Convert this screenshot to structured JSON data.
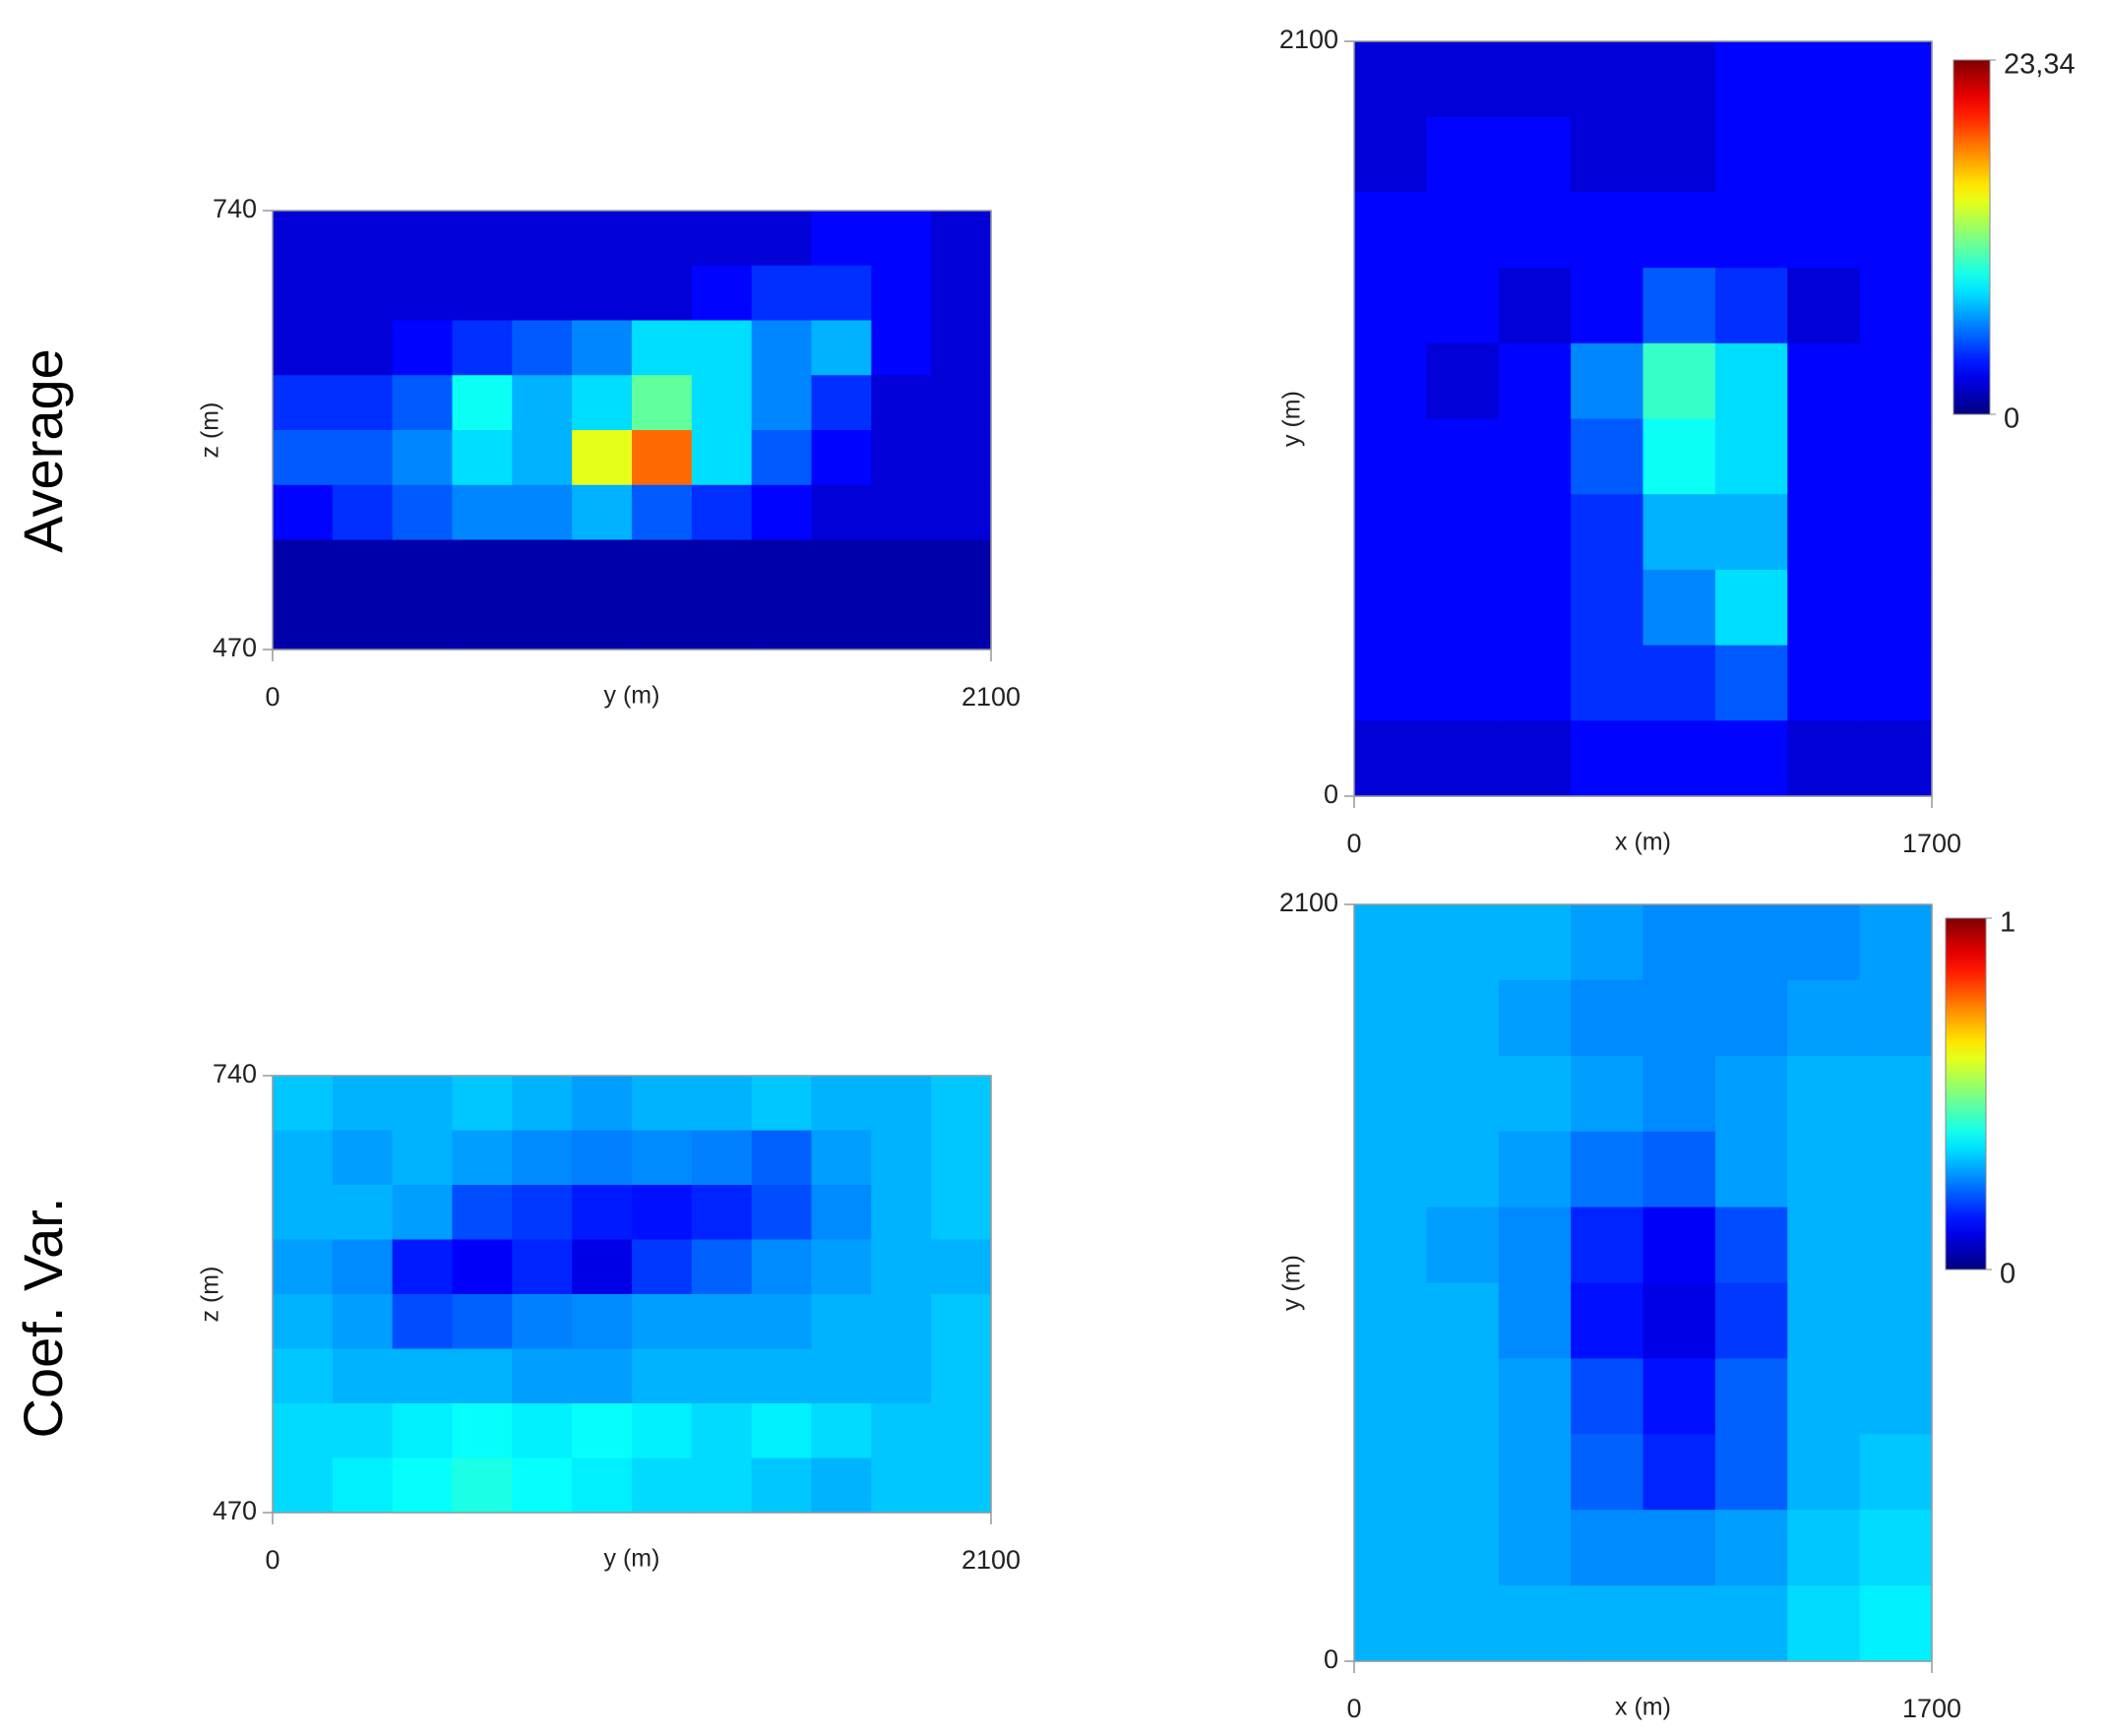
{
  "row_labels": [
    "Average",
    "Coef. Var."
  ],
  "chart_data": [
    {
      "type": "heatmap",
      "colormap": "jet",
      "xlabel": "y (m)",
      "ylabel": "z (m)",
      "xlim": [
        0,
        2100
      ],
      "ylim": [
        470,
        740
      ],
      "xticks": [
        0,
        2100
      ],
      "yticks": [
        470,
        740
      ],
      "zlim": [
        0,
        23.34
      ],
      "z": [
        [
          2,
          2,
          2,
          2,
          2,
          2,
          2,
          2,
          2,
          3,
          3,
          2
        ],
        [
          2,
          2,
          2,
          2,
          2,
          2,
          2,
          3,
          4,
          4,
          3,
          2
        ],
        [
          2,
          2,
          3,
          4,
          5,
          6,
          8,
          8,
          6,
          7,
          3,
          2
        ],
        [
          4,
          4,
          5,
          9,
          7,
          8,
          11,
          8,
          6,
          4,
          2,
          2
        ],
        [
          5,
          5,
          6,
          8,
          7,
          14,
          18,
          8,
          5,
          3,
          2,
          2
        ],
        [
          3,
          4,
          5,
          6,
          6,
          7,
          5,
          4,
          3,
          2,
          2,
          2
        ],
        [
          1,
          1,
          1,
          1,
          1,
          1,
          1,
          1,
          1,
          1,
          1,
          1
        ],
        [
          1,
          1,
          1,
          1,
          1,
          1,
          1,
          1,
          1,
          1,
          1,
          1
        ]
      ]
    },
    {
      "type": "heatmap",
      "colormap": "jet",
      "xlabel": "x (m)",
      "ylabel": "y (m)",
      "xlim": [
        0,
        1700
      ],
      "ylim": [
        0,
        2100
      ],
      "xticks": [
        0,
        1700
      ],
      "yticks": [
        0,
        2100
      ],
      "zlim": [
        0,
        23.34
      ],
      "zticks": [
        0,
        {
          "value": 23.34,
          "label": "23,34"
        }
      ],
      "z": [
        [
          2,
          2,
          2,
          2,
          2,
          3,
          3,
          3
        ],
        [
          2,
          3,
          3,
          2,
          2,
          3,
          3,
          3
        ],
        [
          3,
          3,
          3,
          3,
          3,
          3,
          3,
          3
        ],
        [
          3,
          3,
          2,
          3,
          5,
          4,
          2,
          3
        ],
        [
          3,
          2,
          3,
          6,
          10,
          8,
          3,
          3
        ],
        [
          3,
          3,
          3,
          5,
          9,
          8,
          3,
          3
        ],
        [
          3,
          3,
          3,
          4,
          7,
          7,
          3,
          3
        ],
        [
          3,
          3,
          3,
          4,
          6,
          8,
          3,
          3
        ],
        [
          3,
          3,
          3,
          4,
          4,
          5,
          3,
          3
        ],
        [
          2,
          2,
          2,
          3,
          3,
          3,
          2,
          2
        ]
      ]
    },
    {
      "type": "heatmap",
      "colormap": "jet",
      "xlabel": "y (m)",
      "ylabel": "z (m)",
      "xlim": [
        0,
        2100
      ],
      "ylim": [
        470,
        740
      ],
      "xticks": [
        0,
        2100
      ],
      "yticks": [
        470,
        740
      ],
      "zlim": [
        0,
        1
      ],
      "z": [
        [
          0.32,
          0.3,
          0.3,
          0.32,
          0.3,
          0.28,
          0.3,
          0.3,
          0.32,
          0.3,
          0.3,
          0.32
        ],
        [
          0.3,
          0.28,
          0.3,
          0.28,
          0.26,
          0.25,
          0.26,
          0.25,
          0.22,
          0.28,
          0.3,
          0.32
        ],
        [
          0.3,
          0.3,
          0.28,
          0.2,
          0.18,
          0.15,
          0.14,
          0.16,
          0.2,
          0.26,
          0.3,
          0.32
        ],
        [
          0.28,
          0.26,
          0.15,
          0.12,
          0.16,
          0.1,
          0.18,
          0.22,
          0.26,
          0.28,
          0.3,
          0.3
        ],
        [
          0.3,
          0.28,
          0.2,
          0.22,
          0.25,
          0.26,
          0.28,
          0.28,
          0.28,
          0.3,
          0.3,
          0.32
        ],
        [
          0.32,
          0.3,
          0.3,
          0.3,
          0.28,
          0.28,
          0.3,
          0.3,
          0.3,
          0.3,
          0.3,
          0.32
        ],
        [
          0.34,
          0.34,
          0.36,
          0.38,
          0.36,
          0.38,
          0.36,
          0.34,
          0.36,
          0.34,
          0.32,
          0.32
        ],
        [
          0.34,
          0.36,
          0.38,
          0.4,
          0.38,
          0.36,
          0.34,
          0.34,
          0.32,
          0.3,
          0.32,
          0.32
        ]
      ]
    },
    {
      "type": "heatmap",
      "colormap": "jet",
      "xlabel": "x (m)",
      "ylabel": "y (m)",
      "xlim": [
        0,
        1700
      ],
      "ylim": [
        0,
        2100
      ],
      "xticks": [
        0,
        1700
      ],
      "yticks": [
        0,
        2100
      ],
      "zlim": [
        0,
        1
      ],
      "zticks": [
        0,
        1
      ],
      "z": [
        [
          0.3,
          0.3,
          0.3,
          0.28,
          0.26,
          0.26,
          0.26,
          0.28
        ],
        [
          0.3,
          0.3,
          0.28,
          0.26,
          0.26,
          0.26,
          0.28,
          0.28
        ],
        [
          0.3,
          0.3,
          0.3,
          0.28,
          0.26,
          0.28,
          0.3,
          0.3
        ],
        [
          0.3,
          0.3,
          0.28,
          0.24,
          0.22,
          0.28,
          0.3,
          0.3
        ],
        [
          0.3,
          0.28,
          0.26,
          0.16,
          0.12,
          0.2,
          0.3,
          0.3
        ],
        [
          0.3,
          0.3,
          0.26,
          0.14,
          0.1,
          0.18,
          0.3,
          0.3
        ],
        [
          0.3,
          0.3,
          0.28,
          0.2,
          0.14,
          0.22,
          0.3,
          0.3
        ],
        [
          0.3,
          0.3,
          0.28,
          0.22,
          0.16,
          0.22,
          0.3,
          0.32
        ],
        [
          0.3,
          0.3,
          0.28,
          0.26,
          0.26,
          0.28,
          0.32,
          0.34
        ],
        [
          0.3,
          0.3,
          0.3,
          0.3,
          0.3,
          0.3,
          0.34,
          0.36
        ]
      ]
    }
  ]
}
